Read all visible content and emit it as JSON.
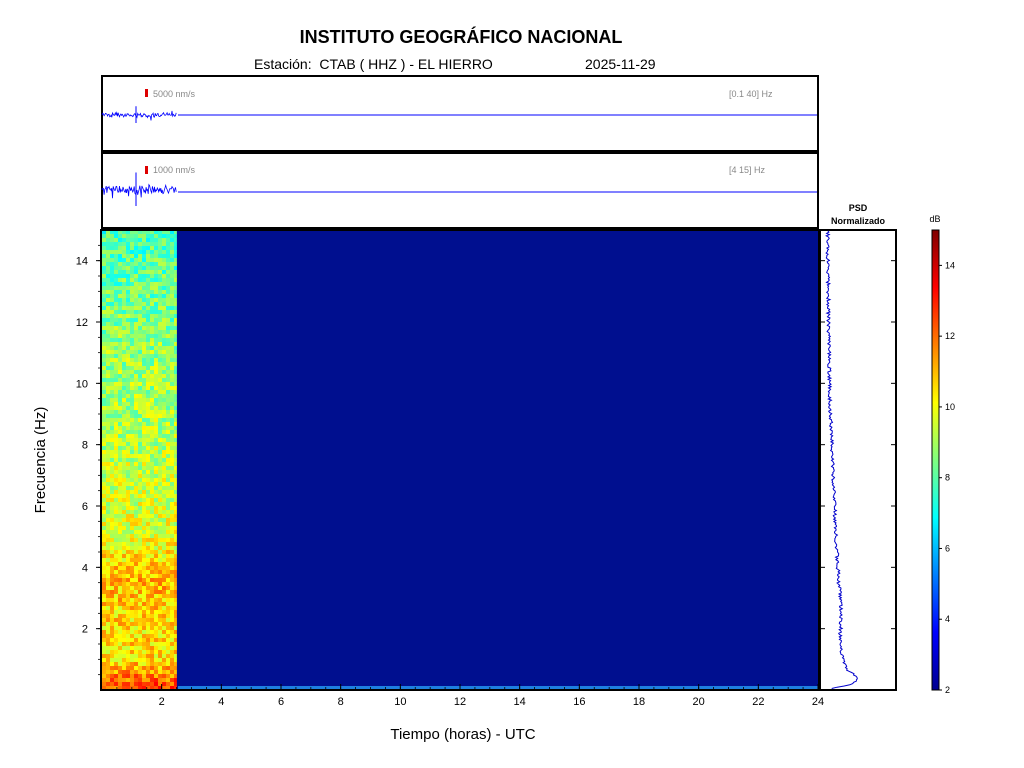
{
  "header": {
    "title": "INSTITUTO GEOGRÁFICO NACIONAL",
    "station_label": "Estación:",
    "station": "CTAB ( HHZ ) - EL HIERRO",
    "date": "2025-11-29"
  },
  "traces": [
    {
      "scale_label": "5000 nm/s",
      "band_label": "[0.1 40] Hz",
      "data_until_hours": 2.5
    },
    {
      "scale_label": "1000 nm/s",
      "band_label": "[4 15] Hz",
      "data_until_hours": 2.5
    }
  ],
  "colors": {
    "trace": "#0000ff",
    "scale_bar": "#dd0000",
    "label_gray": "#888888",
    "spectrogram_background": "#000f8f",
    "psd_line": "#0000cc"
  },
  "chart_data": {
    "type": "heatmap",
    "x": {
      "label": "Tiempo (horas) - UTC",
      "range": [
        0,
        24
      ],
      "ticks": [
        2,
        4,
        6,
        8,
        10,
        12,
        14,
        16,
        18,
        20,
        22,
        24
      ]
    },
    "y": {
      "label": "Frecuencia  (Hz)",
      "range": [
        0,
        15
      ],
      "ticks": [
        2,
        4,
        6,
        8,
        10,
        12,
        14
      ]
    },
    "data_time_range_hours": [
      0,
      2.5
    ],
    "colorbar": {
      "label": "dB",
      "range": [
        2,
        15
      ],
      "ticks": [
        2,
        4,
        6,
        8,
        10,
        12,
        14
      ],
      "colormap": "jet"
    },
    "level_profile_db": [
      {
        "freq_hz": 0.2,
        "db": 12.5
      },
      {
        "freq_hz": 0.5,
        "db": 11.5
      },
      {
        "freq_hz": 1,
        "db": 10.5
      },
      {
        "freq_hz": 2,
        "db": 10.5
      },
      {
        "freq_hz": 3,
        "db": 10.8
      },
      {
        "freq_hz": 3.6,
        "db": 11.0
      },
      {
        "freq_hz": 5,
        "db": 9.8
      },
      {
        "freq_hz": 8,
        "db": 9.2
      },
      {
        "freq_hz": 11,
        "db": 8.8
      },
      {
        "freq_hz": 14,
        "db": 8.0
      },
      {
        "freq_hz": 15,
        "db": 7.8
      }
    ],
    "psd": {
      "title_line1": "PSD",
      "title_line2": "Normalizado",
      "points": [
        {
          "freq_hz": 0.05,
          "value": 0.15
        },
        {
          "freq_hz": 0.2,
          "value": 0.45
        },
        {
          "freq_hz": 0.35,
          "value": 0.52
        },
        {
          "freq_hz": 0.7,
          "value": 0.35
        },
        {
          "freq_hz": 1.5,
          "value": 0.25
        },
        {
          "freq_hz": 2.5,
          "value": 0.28
        },
        {
          "freq_hz": 3.5,
          "value": 0.24
        },
        {
          "freq_hz": 5,
          "value": 0.2
        },
        {
          "freq_hz": 7,
          "value": 0.16
        },
        {
          "freq_hz": 9,
          "value": 0.12
        },
        {
          "freq_hz": 11,
          "value": 0.1
        },
        {
          "freq_hz": 13,
          "value": 0.09
        },
        {
          "freq_hz": 15,
          "value": 0.08
        }
      ]
    }
  }
}
